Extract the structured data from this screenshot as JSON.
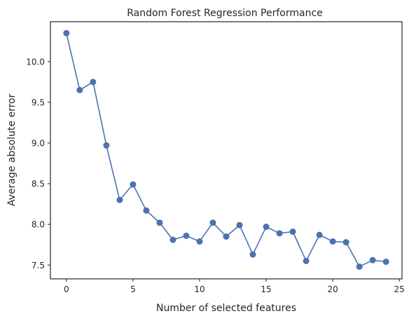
{
  "chart_data": {
    "type": "line",
    "title": "Random Forest Regression Performance",
    "xlabel": "Number of selected features",
    "ylabel": "Average absolute error",
    "x": [
      0,
      1,
      2,
      3,
      4,
      5,
      6,
      7,
      8,
      9,
      10,
      11,
      12,
      13,
      14,
      15,
      16,
      17,
      18,
      19,
      20,
      21,
      22,
      23,
      24
    ],
    "series": [
      {
        "values": [
          10.35,
          9.65,
          9.75,
          8.97,
          8.3,
          8.49,
          8.17,
          8.02,
          7.81,
          7.86,
          7.79,
          8.02,
          7.85,
          7.99,
          7.63,
          7.97,
          7.89,
          7.91,
          7.55,
          7.87,
          7.79,
          7.78,
          7.48,
          7.56,
          7.54
        ],
        "color": "#4c72b0",
        "marker": "circle"
      }
    ],
    "xlim": [
      -1.2,
      25.2
    ],
    "ylim": [
      7.33,
      10.49
    ],
    "xticks": [
      0,
      5,
      10,
      15,
      20,
      25
    ],
    "xtick_labels": [
      "0",
      "5",
      "10",
      "15",
      "20",
      "25"
    ],
    "yticks": [
      7.5,
      8.0,
      8.5,
      9.0,
      9.5,
      10.0
    ],
    "ytick_labels": [
      "7.5",
      "8.0",
      "8.5",
      "9.0",
      "9.5",
      "10.0"
    ],
    "grid": false,
    "legend": false
  }
}
